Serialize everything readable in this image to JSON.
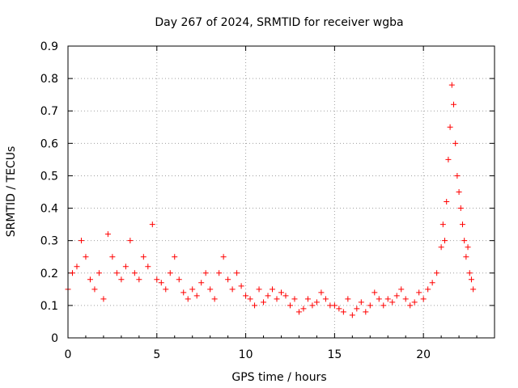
{
  "chart_data": {
    "type": "scatter",
    "title": "Day 267 of 2024, SRMTID for receiver wgba",
    "xlabel": "GPS time / hours",
    "ylabel": "SRMTID / TECUs",
    "xlim": [
      0,
      24
    ],
    "ylim": [
      0,
      0.9
    ],
    "xticks": [
      0,
      5,
      10,
      15,
      20
    ],
    "xtick_labels": [
      "0",
      "5",
      "10",
      "15",
      "20"
    ],
    "yticks": [
      0,
      0.1,
      0.2,
      0.3,
      0.4,
      0.5,
      0.6,
      0.7,
      0.8,
      0.9
    ],
    "ytick_labels": [
      "0",
      "0.1",
      "0.2",
      "0.3",
      "0.4",
      "0.5",
      "0.6",
      "0.7",
      "0.8",
      "0.9"
    ],
    "grid": true,
    "marker": "+",
    "color": "#ff0000",
    "series": [
      {
        "name": "SRMTID",
        "x": [
          0.0,
          0.25,
          0.5,
          0.75,
          1.0,
          1.25,
          1.5,
          1.75,
          2.0,
          2.25,
          2.5,
          2.75,
          3.0,
          3.25,
          3.5,
          3.75,
          4.0,
          4.25,
          4.5,
          4.75,
          5.0,
          5.25,
          5.5,
          5.75,
          6.0,
          6.25,
          6.5,
          6.75,
          7.0,
          7.25,
          7.5,
          7.75,
          8.0,
          8.25,
          8.5,
          8.75,
          9.0,
          9.25,
          9.5,
          9.75,
          10.0,
          10.25,
          10.5,
          10.75,
          11.0,
          11.25,
          11.5,
          11.75,
          12.0,
          12.25,
          12.5,
          12.75,
          13.0,
          13.25,
          13.5,
          13.75,
          14.0,
          14.25,
          14.5,
          14.75,
          15.0,
          15.25,
          15.5,
          15.75,
          16.0,
          16.25,
          16.5,
          16.75,
          17.0,
          17.25,
          17.5,
          17.75,
          18.0,
          18.25,
          18.5,
          18.75,
          19.0,
          19.25,
          19.5,
          19.75,
          20.0,
          20.25,
          20.5,
          20.75,
          21.0,
          21.1,
          21.2,
          21.3,
          21.4,
          21.5,
          21.6,
          21.7,
          21.8,
          21.9,
          22.0,
          22.1,
          22.2,
          22.3,
          22.4,
          22.5,
          22.6,
          22.7,
          22.8
        ],
        "y": [
          0.15,
          0.2,
          0.22,
          0.3,
          0.25,
          0.18,
          0.15,
          0.2,
          0.12,
          0.32,
          0.25,
          0.2,
          0.18,
          0.22,
          0.3,
          0.2,
          0.18,
          0.25,
          0.22,
          0.35,
          0.18,
          0.17,
          0.15,
          0.2,
          0.25,
          0.18,
          0.14,
          0.12,
          0.15,
          0.13,
          0.17,
          0.2,
          0.15,
          0.12,
          0.2,
          0.25,
          0.18,
          0.15,
          0.2,
          0.16,
          0.13,
          0.12,
          0.1,
          0.15,
          0.11,
          0.13,
          0.15,
          0.12,
          0.14,
          0.13,
          0.1,
          0.12,
          0.08,
          0.09,
          0.12,
          0.1,
          0.11,
          0.14,
          0.12,
          0.1,
          0.1,
          0.09,
          0.08,
          0.12,
          0.07,
          0.09,
          0.11,
          0.08,
          0.1,
          0.14,
          0.12,
          0.1,
          0.12,
          0.11,
          0.13,
          0.15,
          0.12,
          0.1,
          0.11,
          0.14,
          0.12,
          0.15,
          0.17,
          0.2,
          0.28,
          0.35,
          0.3,
          0.42,
          0.55,
          0.65,
          0.78,
          0.72,
          0.6,
          0.5,
          0.45,
          0.4,
          0.35,
          0.3,
          0.25,
          0.28,
          0.2,
          0.18,
          0.15
        ]
      }
    ]
  }
}
